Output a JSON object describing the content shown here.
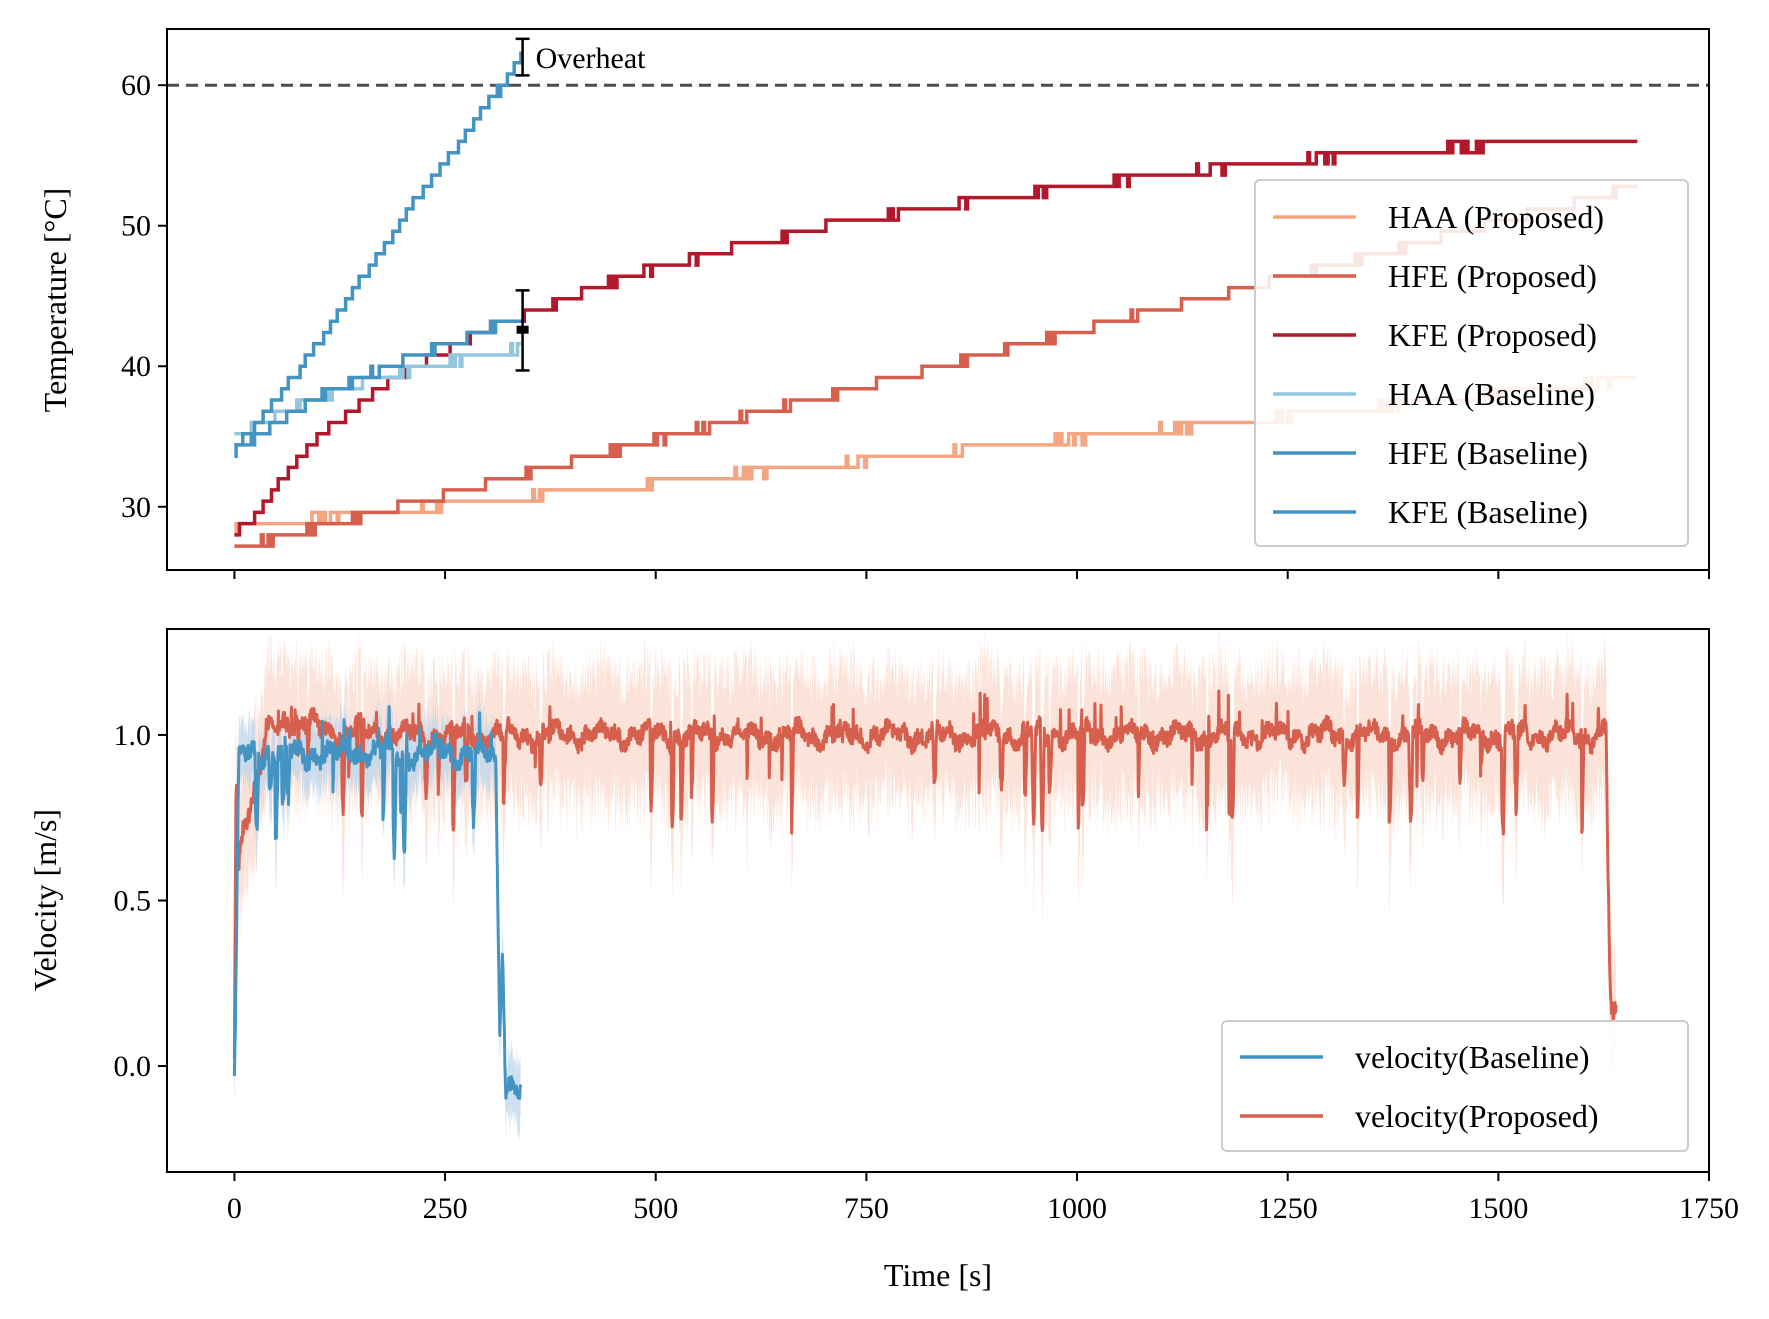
{
  "chart_data": [
    {
      "type": "line",
      "panel": "top",
      "xlabel": "",
      "ylabel": "Temperature [°C]",
      "xlim": [
        -80,
        1750
      ],
      "ylim": [
        25.5,
        64
      ],
      "xticks": [
        0,
        250,
        500,
        750,
        1000,
        1250,
        1500,
        1750
      ],
      "yticks": [
        30,
        40,
        50,
        60
      ],
      "yticklabels": [
        "30",
        "40",
        "50",
        "60"
      ],
      "legend_position": "right",
      "reference_line": {
        "y": 60,
        "style": "dashed",
        "color": "#4d4d4d"
      },
      "annotations": [
        {
          "text": "Overheat",
          "x": 342,
          "y_low": 60.7,
          "y_high": 63.3
        },
        {
          "text": "",
          "x": 342,
          "y_low": 39.7,
          "y_high": 45.4,
          "center": 42.6
        }
      ],
      "series": [
        {
          "name": "HAA (Proposed)",
          "color": "#f4a582",
          "x": [
            0,
            1665
          ],
          "y": [
            28.5,
            39.1
          ]
        },
        {
          "name": "HFE (Proposed)",
          "color": "#d6604d",
          "x": [
            0,
            1665
          ],
          "y": [
            27.0,
            52.8
          ]
        },
        {
          "name": "KFE (Proposed)",
          "color": "#b2182b",
          "x": [
            0,
            20,
            50,
            100,
            150,
            200,
            250,
            300,
            340,
            400,
            500,
            600,
            700,
            800,
            900,
            1000,
            1100,
            1200,
            1300,
            1400,
            1500,
            1600,
            1640,
            1665
          ],
          "y": [
            28.0,
            29.0,
            31.5,
            35.0,
            37.5,
            39.5,
            41.2,
            42.6,
            43.5,
            45.0,
            47.0,
            48.5,
            50.0,
            51.0,
            52.0,
            52.8,
            53.6,
            54.3,
            54.9,
            55.4,
            55.8,
            56.1,
            56.3,
            55.8
          ]
        },
        {
          "name": "HAA (Baseline)",
          "color": "#92c5de",
          "x": [
            0,
            50,
            100,
            150,
            200,
            250,
            300,
            340
          ],
          "y": [
            35.0,
            36.5,
            37.8,
            38.8,
            39.6,
            40.3,
            40.9,
            41.2
          ]
        },
        {
          "name": "HFE (Baseline)",
          "color": "#4393c3",
          "x": [
            0,
            50,
            100,
            150,
            200,
            250,
            300,
            340
          ],
          "y": [
            34.0,
            36.0,
            37.8,
            39.2,
            40.4,
            41.5,
            42.6,
            43.5
          ]
        },
        {
          "name": "KFE (Baseline)",
          "color": "#4393c3",
          "x": [
            0,
            40,
            80,
            120,
            160,
            200,
            240,
            280,
            320,
            340
          ],
          "y": [
            34.0,
            37.0,
            40.0,
            43.5,
            47.0,
            50.5,
            53.8,
            57.0,
            60.2,
            62.0
          ]
        }
      ]
    },
    {
      "type": "line",
      "panel": "bottom",
      "xlabel": "Time [s]",
      "ylabel": "Velocity [m/s]",
      "xlim": [
        -80,
        1750
      ],
      "ylim": [
        -0.32,
        1.32
      ],
      "xticks": [
        0,
        250,
        500,
        750,
        1000,
        1250,
        1500,
        1750
      ],
      "xticklabels": [
        "0",
        "250",
        "500",
        "750",
        "1000",
        "1250",
        "1500",
        "1750"
      ],
      "yticks": [
        0.0,
        0.5,
        1.0
      ],
      "yticklabels": [
        "0.0",
        "0.5",
        "1.0"
      ],
      "legend_position": "lower right",
      "series": [
        {
          "name": "velocity(Baseline)",
          "color": "#4393c3",
          "band_color": "#bcd6ea",
          "x": [
            0,
            1,
            5,
            10,
            50,
            100,
            150,
            200,
            250,
            300,
            310,
            312,
            315,
            318,
            322,
            330,
            340
          ],
          "y": [
            -0.03,
            0.05,
            0.9,
            0.94,
            0.95,
            0.94,
            0.95,
            0.94,
            0.95,
            0.94,
            0.93,
            0.6,
            0.1,
            0.38,
            -0.05,
            -0.05,
            -0.07
          ],
          "band_halfwidth": 0.1
        },
        {
          "name": "velocity(Proposed)",
          "color": "#d6604d",
          "band_color": "#fbdcd0",
          "x": [
            0,
            2,
            5,
            10,
            20,
            40,
            60,
            100,
            200,
            300,
            500,
            750,
            1000,
            1250,
            1500,
            1620,
            1628,
            1630,
            1633,
            1636,
            1640
          ],
          "y": [
            0.05,
            0.88,
            0.6,
            0.75,
            0.78,
            1.0,
            1.05,
            1.02,
            1.0,
            1.0,
            1.0,
            1.0,
            1.0,
            1.0,
            1.0,
            1.0,
            1.03,
            0.6,
            0.18,
            0.12,
            0.16
          ],
          "band_halfwidth": 0.2
        }
      ]
    }
  ]
}
